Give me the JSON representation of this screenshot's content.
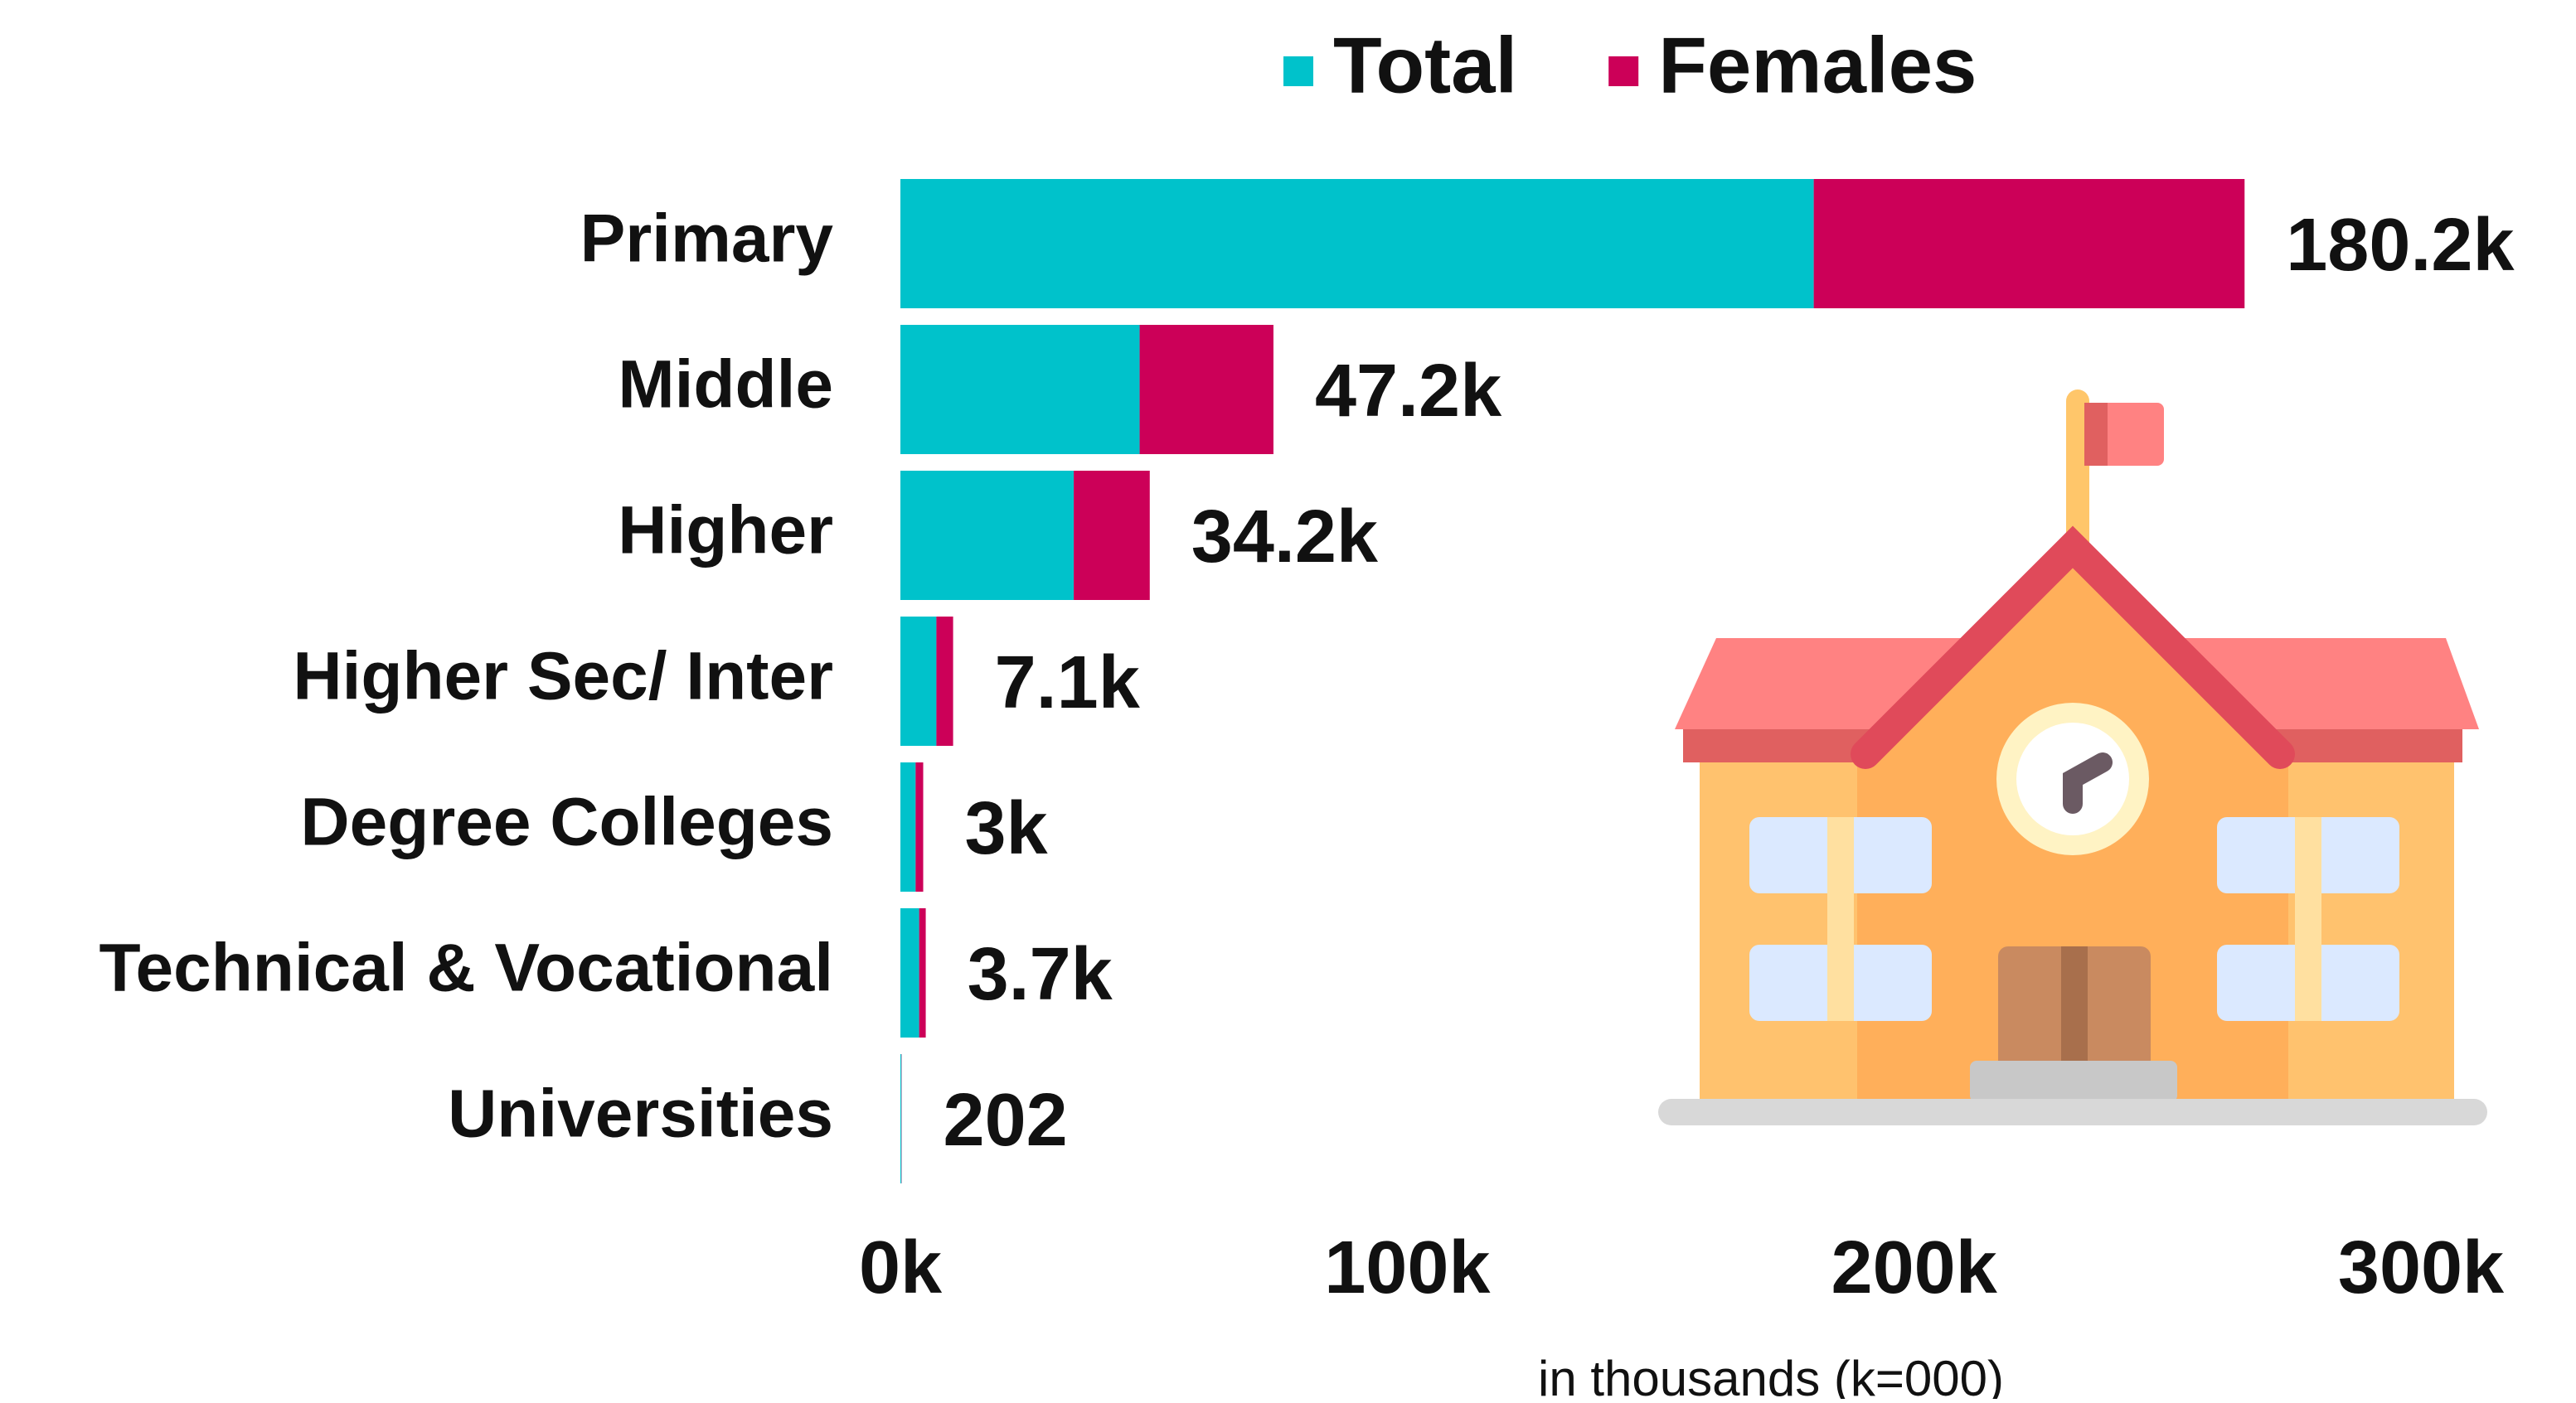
{
  "chart_data": {
    "type": "bar",
    "orientation": "horizontal",
    "stacked": true,
    "categories": [
      "Primary",
      "Middle",
      "Higher",
      "Higher Sec/ Inter",
      "Degree Colleges",
      "Technical & Vocational",
      "Universities"
    ],
    "series": [
      {
        "name": "Total",
        "color": "#00c2cb",
        "values": [
          180200,
          47200,
          34200,
          7100,
          3000,
          3700,
          202
        ],
        "value_labels": [
          "180.2k",
          "47.2k",
          "34.2k",
          "7.1k",
          "3k",
          "3.7k",
          "202"
        ]
      },
      {
        "name": "Females",
        "color": "#cc0058",
        "values": [
          85000,
          26400,
          15000,
          3300,
          1500,
          1300,
          50
        ]
      }
    ],
    "xlim": [
      0,
      300000
    ],
    "xticks": [
      {
        "value": 0,
        "label": "0k"
      },
      {
        "value": 100000,
        "label": "100k"
      },
      {
        "value": 200000,
        "label": "200k"
      },
      {
        "value": 300000,
        "label": "300k"
      }
    ],
    "xlabel": "in thousands (k=000)",
    "legend": "top"
  }
}
